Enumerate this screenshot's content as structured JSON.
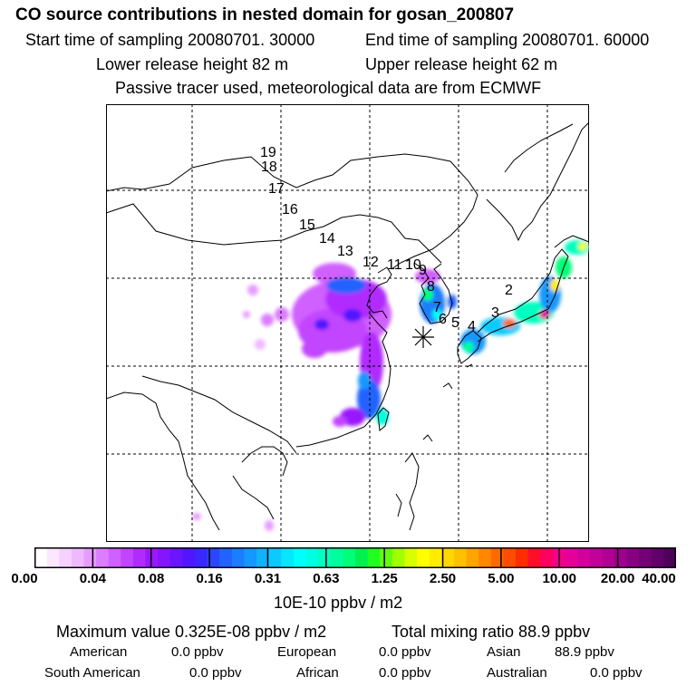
{
  "header": {
    "title": "CO  source contributions in nested domain for gosan_200807",
    "start_time": "Start time of sampling 20080701. 30000",
    "end_time": "End time of sampling 20080701. 60000",
    "lower_height": "Lower release height   82 m",
    "upper_height": "Upper release height   62 m",
    "tracer_note": "Passive tracer used, meteorological data are from ECMWF"
  },
  "map": {
    "trajectory_labels": [
      "19",
      "18",
      "17",
      "16",
      "15",
      "14",
      "13",
      "12",
      "11",
      "10",
      "9",
      "8",
      "7",
      "6",
      "5",
      "4",
      "3",
      "2"
    ],
    "receptor_marker": "asterisk-icon"
  },
  "colorbar": {
    "tick_labels": [
      "0.00",
      "0.04",
      "0.08",
      "0.16",
      "0.31",
      "0.63",
      "1.25",
      "2.50",
      "5.00",
      "10.00",
      "20.00",
      "40.00"
    ],
    "colors": [
      "#ffffff",
      "#fbe8ff",
      "#f5d2ff",
      "#efb9ff",
      "#e69cff",
      "#dc7dff",
      "#d060ff",
      "#c244ff",
      "#b12bff",
      "#9a18ff",
      "#8515ff",
      "#6a14ff",
      "#4f16ff",
      "#3a28ff",
      "#2c46ff",
      "#2262ff",
      "#1b7dff",
      "#1598ff",
      "#10b2ff",
      "#0ccaff",
      "#08e6ff",
      "#00ffff",
      "#00ffe0",
      "#00ffc0",
      "#00ff9c",
      "#00ff78",
      "#00f050",
      "#20ff20",
      "#60ff10",
      "#a0ff00",
      "#d8ff00",
      "#ffff00",
      "#ffec00",
      "#ffd800",
      "#ffc000",
      "#ffa400",
      "#ff8800",
      "#ff6a00",
      "#ff4c00",
      "#ff2c00",
      "#ff0e2a",
      "#ff0060",
      "#f5008a",
      "#e6009a",
      "#d4009e",
      "#c2009a",
      "#b00094",
      "#9c008c",
      "#880082",
      "#740076",
      "#600068",
      "#4c005a"
    ],
    "units": "10E-10 ppbv / m2"
  },
  "stats": {
    "maximum": "Maximum value  0.325E-08 ppbv / m2",
    "total": "Total mixing ratio       88.9 ppbv"
  },
  "regions": {
    "american": {
      "label": "American",
      "value": "0.0 ppbv"
    },
    "european": {
      "label": "European",
      "value": "0.0 ppbv"
    },
    "asian": {
      "label": "Asian",
      "value": "88.9 ppbv"
    },
    "south_american": {
      "label": "South American",
      "value": "0.0 ppbv"
    },
    "african": {
      "label": "African",
      "value": "0.0 ppbv"
    },
    "australian": {
      "label": "Australian",
      "value": "0.0 ppbv"
    }
  }
}
